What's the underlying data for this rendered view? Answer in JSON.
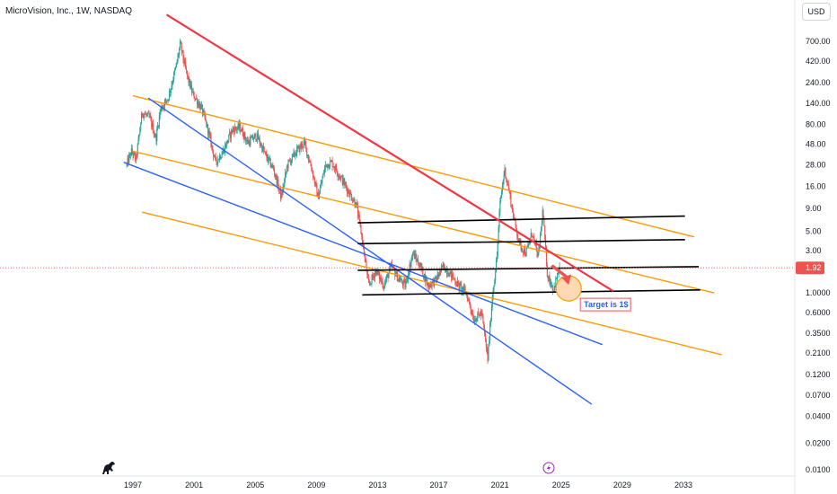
{
  "header": {
    "title": "MicroVision, Inc., 1W, NASDAQ",
    "currency": "USD"
  },
  "price_badge": "1.92",
  "annotation": {
    "target_text": "Target is 1$"
  },
  "colors": {
    "up": "#26a69a",
    "down": "#ef5350",
    "red_trend": "#f23645",
    "orange_channel": "#ff9800",
    "blue_channel": "#2962ff",
    "support": "#000000",
    "price_line": "#ef5350",
    "target_fill": "#ffd9b3",
    "target_stroke": "#ff9800",
    "arrow": "#ef5350",
    "label_border": "#ef5350",
    "label_text": "#2962ff"
  },
  "icons": {
    "logo": "dinosaur-icon",
    "event": "lightning-icon"
  },
  "chart_data": {
    "type": "candlestick",
    "symbol": "MicroVision, Inc.",
    "interval": "1W",
    "exchange": "NASDAQ",
    "y_scale": "log",
    "ylim": [
      0.01,
      1800
    ],
    "xlim": [
      1996.5,
      2035
    ],
    "y_ticks": [
      "700.00",
      "420.00",
      "240.00",
      "140.00",
      "80.00",
      "48.00",
      "28.00",
      "16.00",
      "9.00",
      "5.00",
      "3.00",
      "1.0000",
      "0.6000",
      "0.3500",
      "0.2100",
      "0.1200",
      "0.0700",
      "0.0400",
      "0.0200",
      "0.0100"
    ],
    "x_ticks": [
      "1997",
      "2001",
      "2005",
      "2009",
      "2013",
      "2017",
      "2021",
      "2025",
      "2029",
      "2033"
    ],
    "last_price": 1.92,
    "price_path": [
      [
        1996.6,
        28
      ],
      [
        1996.9,
        40
      ],
      [
        1997.2,
        32
      ],
      [
        1997.6,
        110
      ],
      [
        1998.1,
        95
      ],
      [
        1998.5,
        55
      ],
      [
        1998.8,
        120
      ],
      [
        1999.3,
        160
      ],
      [
        1999.8,
        350
      ],
      [
        2000.1,
        650
      ],
      [
        2000.5,
        300
      ],
      [
        2000.9,
        180
      ],
      [
        2001.5,
        120
      ],
      [
        2001.9,
        70
      ],
      [
        2002.4,
        30
      ],
      [
        2002.9,
        40
      ],
      [
        2003.5,
        70
      ],
      [
        2004.0,
        75
      ],
      [
        2004.5,
        50
      ],
      [
        2005.1,
        60
      ],
      [
        2005.7,
        35
      ],
      [
        2006.2,
        25
      ],
      [
        2006.7,
        12
      ],
      [
        2007.1,
        28
      ],
      [
        2007.7,
        40
      ],
      [
        2008.2,
        50
      ],
      [
        2008.7,
        25
      ],
      [
        2009.1,
        12
      ],
      [
        2009.6,
        28
      ],
      [
        2010.0,
        30
      ],
      [
        2010.6,
        20
      ],
      [
        2011.1,
        14
      ],
      [
        2011.6,
        10
      ],
      [
        2012.0,
        4
      ],
      [
        2012.4,
        1.2
      ],
      [
        2012.9,
        1.8
      ],
      [
        2013.4,
        1.2
      ],
      [
        2013.9,
        2.0
      ],
      [
        2014.3,
        1.5
      ],
      [
        2014.8,
        1.2
      ],
      [
        2015.3,
        2.8
      ],
      [
        2015.8,
        2.0
      ],
      [
        2016.3,
        1.2
      ],
      [
        2016.8,
        1.4
      ],
      [
        2017.3,
        2.0
      ],
      [
        2017.8,
        1.6
      ],
      [
        2018.3,
        1.2
      ],
      [
        2018.8,
        1.0
      ],
      [
        2019.3,
        0.5
      ],
      [
        2019.8,
        0.6
      ],
      [
        2020.2,
        0.18
      ],
      [
        2020.5,
        0.9
      ],
      [
        2020.8,
        2.5
      ],
      [
        2021.0,
        10
      ],
      [
        2021.3,
        25
      ],
      [
        2021.6,
        14
      ],
      [
        2021.9,
        7
      ],
      [
        2022.3,
        3.5
      ],
      [
        2022.7,
        2.8
      ],
      [
        2023.1,
        4.8
      ],
      [
        2023.5,
        2.5
      ],
      [
        2023.8,
        8.5
      ],
      [
        2024.1,
        1.6
      ],
      [
        2024.5,
        1.1
      ],
      [
        2024.9,
        1.92
      ]
    ],
    "drawings": {
      "red_trend_line": {
        "from": [
          1999.2,
          1400
        ],
        "to": [
          2028.4,
          1.05
        ]
      },
      "orange_lines": [
        {
          "from": [
            1997.0,
            170
          ],
          "to": [
            2033.7,
            4.3
          ]
        },
        {
          "from": [
            1997.0,
            40
          ],
          "to": [
            2035.0,
            1.0
          ]
        },
        {
          "from": [
            1997.6,
            8.2
          ],
          "to": [
            2035.5,
            0.2
          ]
        }
      ],
      "blue_lines": [
        {
          "from": [
            1996.4,
            30
          ],
          "to": [
            2027.7,
            0.26
          ]
        },
        {
          "from": [
            1998.0,
            160
          ],
          "to": [
            2027.0,
            0.055
          ]
        }
      ],
      "black_support_lines": [
        {
          "from": [
            2011.7,
            6.2
          ],
          "to": [
            2033.1,
            7.4
          ]
        },
        {
          "from": [
            2011.7,
            3.6
          ],
          "to": [
            2033.1,
            4.0
          ]
        },
        {
          "from": [
            2011.7,
            1.8
          ],
          "to": [
            2034.0,
            1.98
          ]
        },
        {
          "from": [
            2012.0,
            0.95
          ],
          "to": [
            2034.1,
            1.08
          ]
        }
      ],
      "target_marker": {
        "date": 2025.2,
        "price": 1.0,
        "label": "Target is 1$"
      }
    }
  }
}
